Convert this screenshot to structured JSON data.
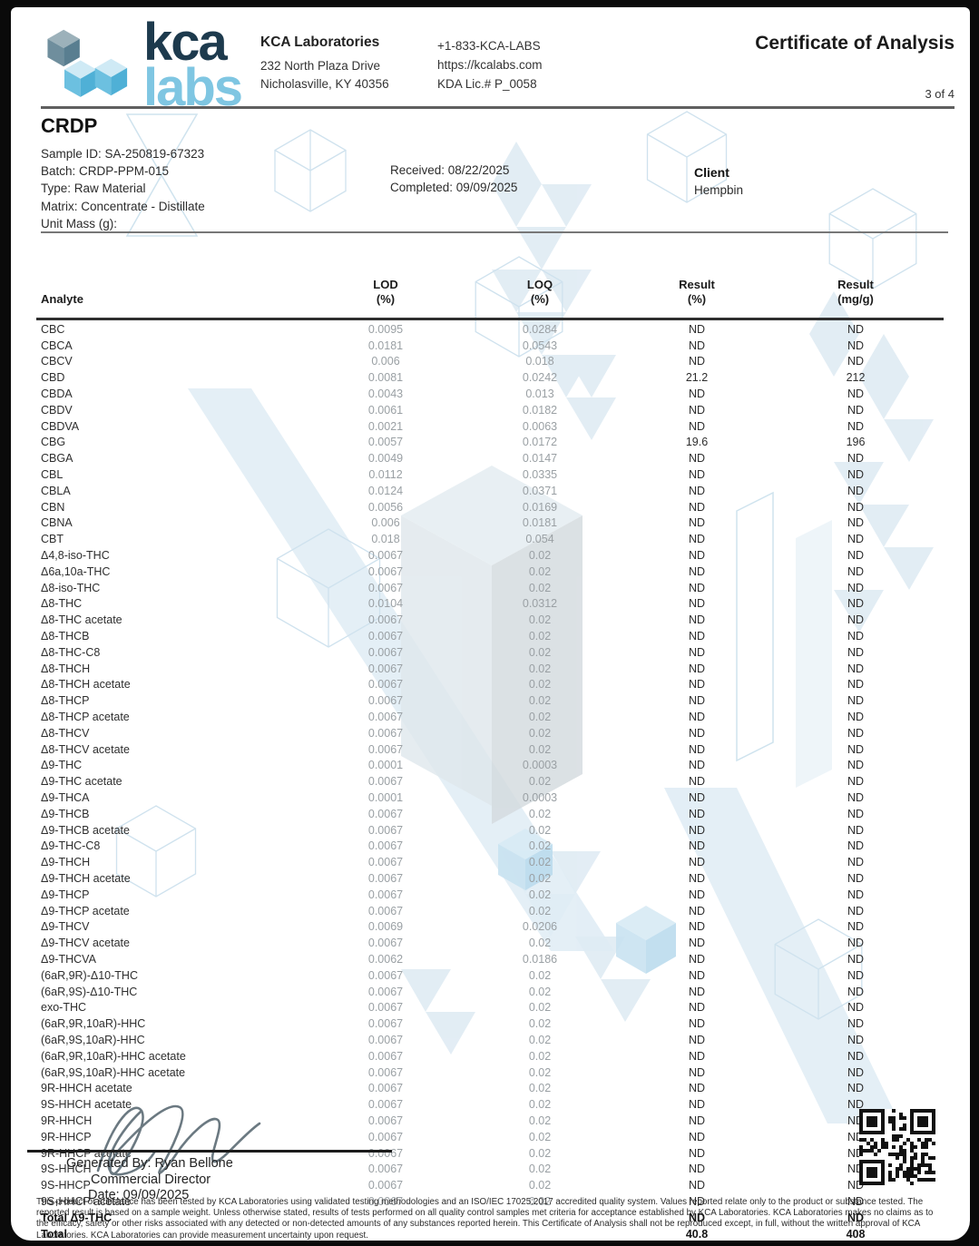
{
  "header": {
    "logo": {
      "kca": "kca",
      "labs": "labs"
    },
    "lab_name": "KCA Laboratories",
    "address1": "232 North Plaza Drive",
    "address2": "Nicholasville, KY 40356",
    "phone": "+1-833-KCA-LABS",
    "website": "https://kcalabs.com",
    "license": "KDA Lic.# P_0058",
    "title": "Certificate of Analysis",
    "page_indicator": "3 of 4"
  },
  "sample": {
    "title": "CRDP",
    "id": "Sample ID: SA-250819-67323",
    "batch": "Batch: CRDP-PPM-015",
    "type": "Type: Raw Material",
    "matrix": "Matrix: Concentrate - Distillate",
    "unit_mass": "Unit Mass (g):",
    "received": "Received: 08/22/2025",
    "completed": "Completed: 09/09/2025"
  },
  "client": {
    "label": "Client",
    "name": "Hempbin"
  },
  "table": {
    "headers": [
      {
        "l1": "Analyte",
        "l2": ""
      },
      {
        "l1": "LOD",
        "l2": "(%)"
      },
      {
        "l1": "LOQ",
        "l2": "(%)"
      },
      {
        "l1": "Result",
        "l2": "(%)"
      },
      {
        "l1": "Result",
        "l2": "(mg/g)"
      }
    ],
    "rows": [
      {
        "a": "CBC",
        "lod": "0.0095",
        "loq": "0.0284",
        "pct": "ND",
        "mgg": "ND"
      },
      {
        "a": "CBCA",
        "lod": "0.0181",
        "loq": "0.0543",
        "pct": "ND",
        "mgg": "ND"
      },
      {
        "a": "CBCV",
        "lod": "0.006",
        "loq": "0.018",
        "pct": "ND",
        "mgg": "ND"
      },
      {
        "a": "CBD",
        "lod": "0.0081",
        "loq": "0.0242",
        "pct": "21.2",
        "mgg": "212"
      },
      {
        "a": "CBDA",
        "lod": "0.0043",
        "loq": "0.013",
        "pct": "ND",
        "mgg": "ND"
      },
      {
        "a": "CBDV",
        "lod": "0.0061",
        "loq": "0.0182",
        "pct": "ND",
        "mgg": "ND"
      },
      {
        "a": "CBDVA",
        "lod": "0.0021",
        "loq": "0.0063",
        "pct": "ND",
        "mgg": "ND"
      },
      {
        "a": "CBG",
        "lod": "0.0057",
        "loq": "0.0172",
        "pct": "19.6",
        "mgg": "196"
      },
      {
        "a": "CBGA",
        "lod": "0.0049",
        "loq": "0.0147",
        "pct": "ND",
        "mgg": "ND"
      },
      {
        "a": "CBL",
        "lod": "0.0112",
        "loq": "0.0335",
        "pct": "ND",
        "mgg": "ND"
      },
      {
        "a": "CBLA",
        "lod": "0.0124",
        "loq": "0.0371",
        "pct": "ND",
        "mgg": "ND"
      },
      {
        "a": "CBN",
        "lod": "0.0056",
        "loq": "0.0169",
        "pct": "ND",
        "mgg": "ND"
      },
      {
        "a": "CBNA",
        "lod": "0.006",
        "loq": "0.0181",
        "pct": "ND",
        "mgg": "ND"
      },
      {
        "a": "CBT",
        "lod": "0.018",
        "loq": "0.054",
        "pct": "ND",
        "mgg": "ND"
      },
      {
        "a": "Δ4,8-iso-THC",
        "lod": "0.0067",
        "loq": "0.02",
        "pct": "ND",
        "mgg": "ND"
      },
      {
        "a": "Δ6a,10a-THC",
        "lod": "0.0067",
        "loq": "0.02",
        "pct": "ND",
        "mgg": "ND"
      },
      {
        "a": "Δ8-iso-THC",
        "lod": "0.0067",
        "loq": "0.02",
        "pct": "ND",
        "mgg": "ND"
      },
      {
        "a": "Δ8-THC",
        "lod": "0.0104",
        "loq": "0.0312",
        "pct": "ND",
        "mgg": "ND"
      },
      {
        "a": "Δ8-THC acetate",
        "lod": "0.0067",
        "loq": "0.02",
        "pct": "ND",
        "mgg": "ND"
      },
      {
        "a": "Δ8-THCB",
        "lod": "0.0067",
        "loq": "0.02",
        "pct": "ND",
        "mgg": "ND"
      },
      {
        "a": "Δ8-THC-C8",
        "lod": "0.0067",
        "loq": "0.02",
        "pct": "ND",
        "mgg": "ND"
      },
      {
        "a": "Δ8-THCH",
        "lod": "0.0067",
        "loq": "0.02",
        "pct": "ND",
        "mgg": "ND"
      },
      {
        "a": "Δ8-THCH acetate",
        "lod": "0.0067",
        "loq": "0.02",
        "pct": "ND",
        "mgg": "ND"
      },
      {
        "a": "Δ8-THCP",
        "lod": "0.0067",
        "loq": "0.02",
        "pct": "ND",
        "mgg": "ND"
      },
      {
        "a": "Δ8-THCP acetate",
        "lod": "0.0067",
        "loq": "0.02",
        "pct": "ND",
        "mgg": "ND"
      },
      {
        "a": "Δ8-THCV",
        "lod": "0.0067",
        "loq": "0.02",
        "pct": "ND",
        "mgg": "ND"
      },
      {
        "a": "Δ8-THCV acetate",
        "lod": "0.0067",
        "loq": "0.02",
        "pct": "ND",
        "mgg": "ND"
      },
      {
        "a": "Δ9-THC",
        "lod": "0.0001",
        "loq": "0.0003",
        "pct": "ND",
        "mgg": "ND"
      },
      {
        "a": "Δ9-THC acetate",
        "lod": "0.0067",
        "loq": "0.02",
        "pct": "ND",
        "mgg": "ND"
      },
      {
        "a": "Δ9-THCA",
        "lod": "0.0001",
        "loq": "0.0003",
        "pct": "ND",
        "mgg": "ND"
      },
      {
        "a": "Δ9-THCB",
        "lod": "0.0067",
        "loq": "0.02",
        "pct": "ND",
        "mgg": "ND"
      },
      {
        "a": "Δ9-THCB acetate",
        "lod": "0.0067",
        "loq": "0.02",
        "pct": "ND",
        "mgg": "ND"
      },
      {
        "a": "Δ9-THC-C8",
        "lod": "0.0067",
        "loq": "0.02",
        "pct": "ND",
        "mgg": "ND"
      },
      {
        "a": "Δ9-THCH",
        "lod": "0.0067",
        "loq": "0.02",
        "pct": "ND",
        "mgg": "ND"
      },
      {
        "a": "Δ9-THCH acetate",
        "lod": "0.0067",
        "loq": "0.02",
        "pct": "ND",
        "mgg": "ND"
      },
      {
        "a": "Δ9-THCP",
        "lod": "0.0067",
        "loq": "0.02",
        "pct": "ND",
        "mgg": "ND"
      },
      {
        "a": "Δ9-THCP acetate",
        "lod": "0.0067",
        "loq": "0.02",
        "pct": "ND",
        "mgg": "ND"
      },
      {
        "a": "Δ9-THCV",
        "lod": "0.0069",
        "loq": "0.0206",
        "pct": "ND",
        "mgg": "ND"
      },
      {
        "a": "Δ9-THCV acetate",
        "lod": "0.0067",
        "loq": "0.02",
        "pct": "ND",
        "mgg": "ND"
      },
      {
        "a": "Δ9-THCVA",
        "lod": "0.0062",
        "loq": "0.0186",
        "pct": "ND",
        "mgg": "ND"
      },
      {
        "a": "(6aR,9R)-Δ10-THC",
        "lod": "0.0067",
        "loq": "0.02",
        "pct": "ND",
        "mgg": "ND"
      },
      {
        "a": "(6aR,9S)-Δ10-THC",
        "lod": "0.0067",
        "loq": "0.02",
        "pct": "ND",
        "mgg": "ND"
      },
      {
        "a": "exo-THC",
        "lod": "0.0067",
        "loq": "0.02",
        "pct": "ND",
        "mgg": "ND"
      },
      {
        "a": "(6aR,9R,10aR)-HHC",
        "lod": "0.0067",
        "loq": "0.02",
        "pct": "ND",
        "mgg": "ND"
      },
      {
        "a": "(6aR,9S,10aR)-HHC",
        "lod": "0.0067",
        "loq": "0.02",
        "pct": "ND",
        "mgg": "ND"
      },
      {
        "a": "(6aR,9R,10aR)-HHC acetate",
        "lod": "0.0067",
        "loq": "0.02",
        "pct": "ND",
        "mgg": "ND"
      },
      {
        "a": "(6aR,9S,10aR)-HHC acetate",
        "lod": "0.0067",
        "loq": "0.02",
        "pct": "ND",
        "mgg": "ND"
      },
      {
        "a": "9R-HHCH acetate",
        "lod": "0.0067",
        "loq": "0.02",
        "pct": "ND",
        "mgg": "ND"
      },
      {
        "a": "9S-HHCH acetate",
        "lod": "0.0067",
        "loq": "0.02",
        "pct": "ND",
        "mgg": "ND"
      },
      {
        "a": "9R-HHCH",
        "lod": "0.0067",
        "loq": "0.02",
        "pct": "ND",
        "mgg": "ND"
      },
      {
        "a": "9R-HHCP",
        "lod": "0.0067",
        "loq": "0.02",
        "pct": "ND",
        "mgg": "ND"
      },
      {
        "a": "9R-HHCP acetate",
        "lod": "0.0067",
        "loq": "0.02",
        "pct": "ND",
        "mgg": "ND"
      },
      {
        "a": "9S-HHCH",
        "lod": "0.0067",
        "loq": "0.02",
        "pct": "ND",
        "mgg": "ND"
      },
      {
        "a": "9S-HHCP",
        "lod": "0.0067",
        "loq": "0.02",
        "pct": "ND",
        "mgg": "ND"
      },
      {
        "a": "9S-HHCP acetate",
        "lod": "0.0067",
        "loq": "0.02",
        "pct": "ND",
        "mgg": "ND"
      },
      {
        "a": "Total Δ9-THC",
        "lod": "",
        "loq": "",
        "pct": "ND",
        "mgg": "ND",
        "bold": true
      },
      {
        "a": "Total",
        "lod": "",
        "loq": "",
        "pct": "40.8",
        "mgg": "408",
        "bold": true
      }
    ]
  },
  "signature": {
    "generated_by": "Generated By: Ryan Bellone",
    "role": "Commercial Director",
    "date": "Date: 09/09/2025"
  },
  "footer": {
    "disclaimer": "This product or substance has been tested by KCA Laboratories using validated testing methodologies and an ISO/IEC 17025:2017 accredited quality system. Values reported relate only to the product or substance tested. The reported result is based on a sample weight. Unless otherwise stated, results of tests performed on all quality control samples met criteria for acceptance established by KCA Laboratories. KCA Laboratories makes no claims as to the efficacy, safety or other risks associated with any detected or non-detected amounts of any substances reported herein. This Certificate of Analysis shall not be reproduced except, in full, without the written approval of KCA Laboratories. KCA Laboratories can provide measurement uncertainty upon request."
  },
  "colors": {
    "brand_navy": "#1d3a4d",
    "brand_lightblue": "#7fc6e2",
    "watermark_blue": "#dce9f2",
    "lod_loq_text": "#9aa0a4",
    "body_text": "#2e2e2e"
  }
}
